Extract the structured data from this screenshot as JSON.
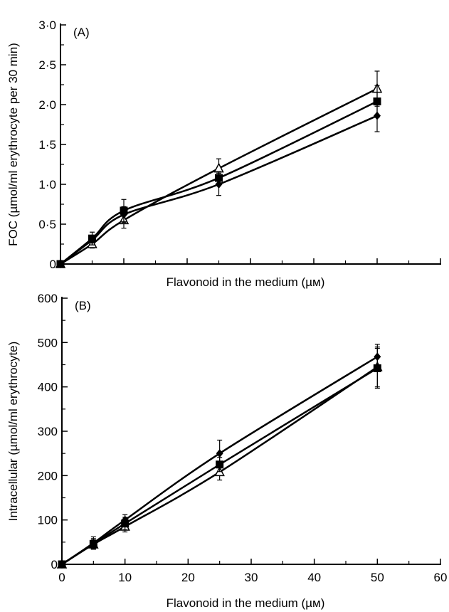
{
  "chart_data": [
    {
      "type": "line",
      "panel_label": "(A)",
      "xlabel": "Flavonoid in the medium (µм)",
      "ylabel": "FOC (µmol/ml erythrocyte per 30 min)",
      "xlim": [
        0,
        60
      ],
      "ylim": [
        0,
        3
      ],
      "x_ticks": [
        0,
        10,
        20,
        30,
        40,
        50,
        60
      ],
      "x_tick_labels_shown": false,
      "y_ticks": [
        0,
        0.5,
        1.0,
        1.5,
        2.0,
        2.5,
        3.0
      ],
      "y_tick_labels": [
        "0",
        "0·5",
        "1·0",
        "1·5",
        "2·0",
        "2·5",
        "3·0"
      ],
      "x": [
        0,
        5,
        10,
        25,
        50
      ],
      "series": [
        {
          "marker": "triangle-open",
          "values": [
            0,
            0.25,
            0.55,
            1.2,
            2.2
          ],
          "errors": [
            0,
            0.05,
            0.1,
            0.12,
            0.22
          ]
        },
        {
          "marker": "square-filled",
          "values": [
            0,
            0.32,
            0.67,
            1.08,
            2.04
          ],
          "errors": [
            0,
            0.08,
            0.14,
            0.08,
            0.2
          ]
        },
        {
          "marker": "diamond-filled",
          "values": [
            0,
            0.3,
            0.62,
            1.0,
            1.86
          ],
          "errors": [
            0,
            0.06,
            0.1,
            0.14,
            0.2
          ]
        }
      ]
    },
    {
      "type": "line",
      "panel_label": "(B)",
      "xlabel": "Flavonoid in the medium (µм)",
      "ylabel": "Intracellular (µmol/ml erythrocyte)",
      "xlim": [
        0,
        60
      ],
      "ylim": [
        0,
        600
      ],
      "x_ticks": [
        0,
        10,
        20,
        30,
        40,
        50,
        60
      ],
      "x_tick_labels": [
        "0",
        "10",
        "20",
        "30",
        "40",
        "50",
        "60"
      ],
      "x_tick_labels_shown": true,
      "y_ticks": [
        0,
        100,
        200,
        300,
        400,
        500,
        600
      ],
      "y_tick_labels": [
        "0",
        "100",
        "200",
        "300",
        "400",
        "500",
        "600"
      ],
      "x": [
        0,
        5,
        10,
        25,
        50
      ],
      "series": [
        {
          "marker": "triangle-open",
          "values": [
            0,
            45,
            85,
            208,
            445
          ],
          "errors": [
            0,
            10,
            12,
            18,
            45
          ]
        },
        {
          "marker": "square-filled",
          "values": [
            0,
            46,
            92,
            225,
            442
          ],
          "errors": [
            0,
            12,
            14,
            16,
            45
          ]
        },
        {
          "marker": "diamond-filled",
          "values": [
            0,
            48,
            100,
            250,
            468
          ],
          "errors": [
            0,
            14,
            12,
            30,
            28
          ]
        }
      ]
    }
  ]
}
